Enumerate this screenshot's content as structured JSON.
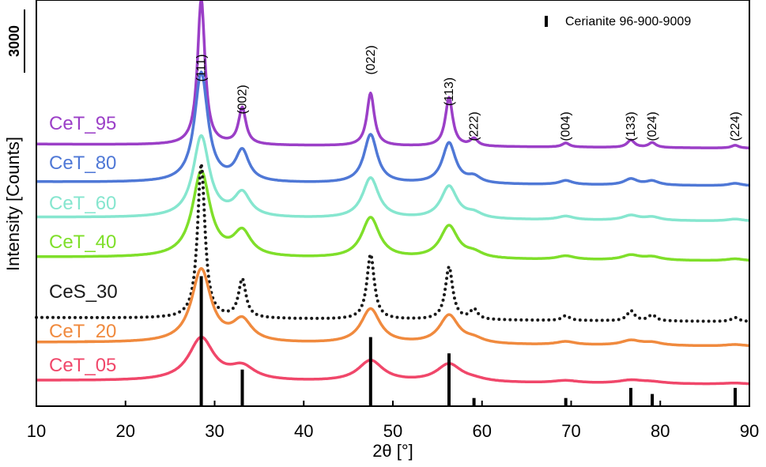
{
  "chart_data": {
    "type": "line",
    "title": "",
    "xlabel": "2θ [°]",
    "ylabel": "Intensity [Counts]",
    "xlim": [
      10,
      90
    ],
    "xticks": [
      10,
      20,
      30,
      40,
      50,
      60,
      70,
      80,
      90
    ],
    "ylim": [
      0,
      1
    ],
    "ytick_labels": [],
    "scale_bar_label": "3000",
    "grid": false,
    "series": [
      {
        "name": "CeT_95",
        "color": "#9b3fc7",
        "baseline": 0.645,
        "width": 0.5,
        "style": "solid",
        "peaks": [
          [
            28.5,
            0.36
          ],
          [
            33.1,
            0.09
          ],
          [
            47.5,
            0.13
          ],
          [
            56.3,
            0.12
          ],
          [
            59.1,
            0.018
          ],
          [
            69.4,
            0.01
          ],
          [
            76.7,
            0.018
          ],
          [
            79.1,
            0.012
          ],
          [
            88.4,
            0.007
          ]
        ]
      },
      {
        "name": "CeT_80",
        "color": "#4f78d6",
        "baseline": 0.552,
        "width": 0.9,
        "style": "solid",
        "peaks": [
          [
            28.5,
            0.27
          ],
          [
            33.1,
            0.075
          ],
          [
            47.5,
            0.12
          ],
          [
            56.3,
            0.1
          ],
          [
            59.1,
            0.015
          ],
          [
            69.4,
            0.01
          ],
          [
            76.7,
            0.015
          ],
          [
            79.1,
            0.01
          ],
          [
            88.4,
            0.006
          ]
        ]
      },
      {
        "name": "CeT_60",
        "color": "#86e6cf",
        "baseline": 0.465,
        "width": 1.1,
        "style": "solid",
        "peaks": [
          [
            28.5,
            0.2
          ],
          [
            33.1,
            0.058
          ],
          [
            47.5,
            0.1
          ],
          [
            56.3,
            0.08
          ],
          [
            59.1,
            0.012
          ],
          [
            69.4,
            0.009
          ],
          [
            76.7,
            0.012
          ],
          [
            79.1,
            0.008
          ],
          [
            88.4,
            0.005
          ]
        ]
      },
      {
        "name": "CeT_40",
        "color": "#7fdf2a",
        "baseline": 0.367,
        "width": 1.2,
        "style": "solid",
        "peaks": [
          [
            28.5,
            0.21
          ],
          [
            33.1,
            0.06
          ],
          [
            47.5,
            0.1
          ],
          [
            56.3,
            0.08
          ],
          [
            59.1,
            0.012
          ],
          [
            69.4,
            0.009
          ],
          [
            76.7,
            0.012
          ],
          [
            79.1,
            0.008
          ],
          [
            88.4,
            0.005
          ]
        ]
      },
      {
        "name": "CeS_30",
        "color": "#1a1a1a",
        "baseline": 0.218,
        "width": 0.5,
        "style": "dotted",
        "peaks": [
          [
            28.5,
            0.38
          ],
          [
            33.1,
            0.095
          ],
          [
            47.5,
            0.16
          ],
          [
            56.3,
            0.13
          ],
          [
            59.1,
            0.025
          ],
          [
            69.4,
            0.012
          ],
          [
            76.7,
            0.025
          ],
          [
            79.1,
            0.015
          ],
          [
            88.4,
            0.01
          ]
        ]
      },
      {
        "name": "CeT_20",
        "color": "#f08a3e",
        "baseline": 0.157,
        "width": 1.3,
        "style": "solid",
        "peaks": [
          [
            28.5,
            0.18
          ],
          [
            33.1,
            0.052
          ],
          [
            47.5,
            0.085
          ],
          [
            56.3,
            0.07
          ],
          [
            59.1,
            0.01
          ],
          [
            69.4,
            0.008
          ],
          [
            76.7,
            0.012
          ],
          [
            79.1,
            0.007
          ],
          [
            88.4,
            0.004
          ]
        ]
      },
      {
        "name": "CeT_05",
        "color": "#f0476a",
        "baseline": 0.063,
        "width": 1.7,
        "style": "solid",
        "peaks": [
          [
            28.5,
            0.105
          ],
          [
            33.1,
            0.032
          ],
          [
            47.5,
            0.052
          ],
          [
            56.3,
            0.044
          ],
          [
            59.1,
            0.005
          ],
          [
            69.4,
            0.006
          ],
          [
            76.7,
            0.008
          ],
          [
            79.1,
            0.004
          ],
          [
            88.4,
            0.003
          ]
        ]
      }
    ],
    "reference": {
      "name": "Cerianite 96-900-9009",
      "peaks": [
        {
          "x": 28.5,
          "h": 0.32
        },
        {
          "x": 33.1,
          "h": 0.09
        },
        {
          "x": 47.5,
          "h": 0.17
        },
        {
          "x": 56.3,
          "h": 0.13
        },
        {
          "x": 59.1,
          "h": 0.02
        },
        {
          "x": 69.4,
          "h": 0.02
        },
        {
          "x": 76.7,
          "h": 0.045
        },
        {
          "x": 79.1,
          "h": 0.03
        },
        {
          "x": 88.4,
          "h": 0.045
        }
      ]
    },
    "peak_labels": [
      {
        "x": 28.5,
        "text": "(111)"
      },
      {
        "x": 33.1,
        "text": "(002)"
      },
      {
        "x": 47.5,
        "text": "(022)"
      },
      {
        "x": 56.3,
        "text": "(113)"
      },
      {
        "x": 59.1,
        "text": "(222)"
      },
      {
        "x": 69.4,
        "text": "(004)"
      },
      {
        "x": 76.7,
        "text": "(133)"
      },
      {
        "x": 79.1,
        "text": "(024)"
      },
      {
        "x": 88.4,
        "text": "(224)"
      }
    ]
  }
}
